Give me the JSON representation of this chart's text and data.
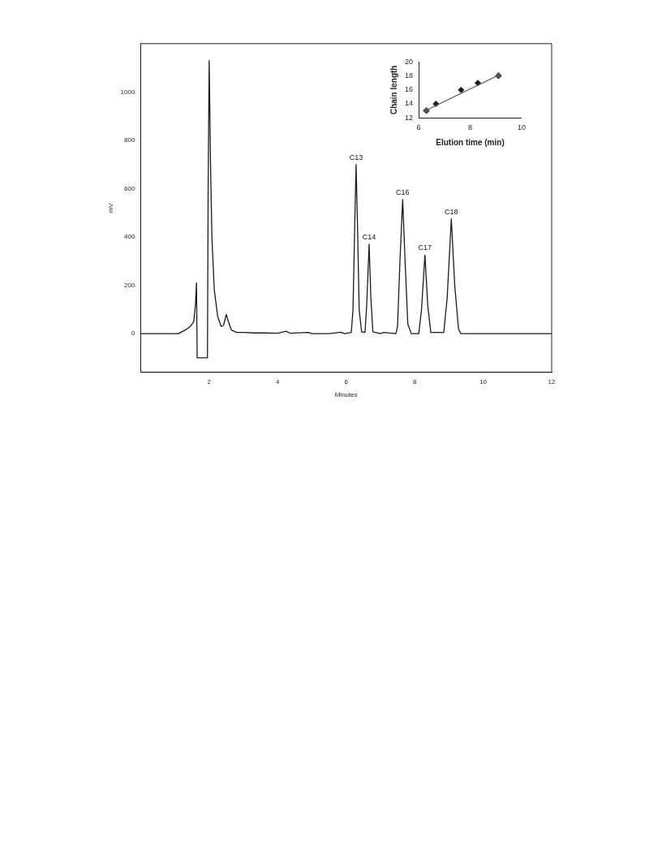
{
  "chart_data": [
    {
      "type": "line",
      "xlabel": "Minutes",
      "ylabel": "mV",
      "xlim": [
        0,
        12
      ],
      "ylim": [
        -160,
        1200
      ],
      "xticks": [
        2,
        4,
        6,
        8,
        10,
        12
      ],
      "yticks": [
        0,
        200,
        400,
        600,
        800,
        1000
      ],
      "grid": false,
      "legend": false,
      "marker": "none",
      "series": [
        {
          "color": "#1a1a1a",
          "x": [
            0,
            1.1,
            1.3,
            1.45,
            1.55,
            1.6,
            1.63,
            1.65,
            1.95,
            1.97,
            2.0,
            2.04,
            2.08,
            2.15,
            2.25,
            2.35,
            2.42,
            2.5,
            2.56,
            2.65,
            2.8,
            3.0,
            3.3,
            3.6,
            4.0,
            4.25,
            4.35,
            4.75,
            4.9,
            5.0,
            5.5,
            5.85,
            5.95,
            6.15,
            6.2,
            6.25,
            6.29,
            6.33,
            6.38,
            6.45,
            6.55,
            6.6,
            6.67,
            6.72,
            6.78,
            7.0,
            7.1,
            7.45,
            7.5,
            7.57,
            7.65,
            7.72,
            7.8,
            7.9,
            8.12,
            8.2,
            8.3,
            8.38,
            8.47,
            8.85,
            8.95,
            9.07,
            9.17,
            9.28,
            9.35,
            12
          ],
          "values": [
            0,
            0,
            15,
            30,
            50,
            120,
            210,
            -100,
            -100,
            600,
            1130,
            700,
            400,
            180,
            70,
            30,
            35,
            80,
            50,
            15,
            5,
            5,
            3,
            3,
            2,
            10,
            2,
            4,
            5,
            0,
            0,
            6,
            0,
            5,
            100,
            450,
            700,
            450,
            100,
            8,
            5,
            120,
            370,
            150,
            8,
            0,
            5,
            0,
            30,
            300,
            555,
            300,
            40,
            0,
            0,
            100,
            325,
            120,
            5,
            5,
            150,
            475,
            200,
            20,
            0,
            0
          ]
        }
      ],
      "annotations": [
        {
          "text": "C13",
          "x": 6.29,
          "y": 700
        },
        {
          "text": "C14",
          "x": 6.67,
          "y": 370
        },
        {
          "text": "C16",
          "x": 7.65,
          "y": 555
        },
        {
          "text": "C17",
          "x": 8.3,
          "y": 325
        },
        {
          "text": "C18",
          "x": 9.07,
          "y": 475
        }
      ]
    },
    {
      "type": "scatter",
      "xlabel": "Elution time (min)",
      "ylabel": "Chain length",
      "xlim": [
        6,
        10
      ],
      "ylim": [
        12,
        20
      ],
      "xticks": [
        6,
        8,
        10
      ],
      "yticks": [
        12,
        14,
        16,
        18,
        20
      ],
      "grid": false,
      "legend": false,
      "marker": "diamond",
      "series": [
        {
          "color": "#1a1a1a",
          "x": [
            6.3,
            6.67,
            7.65,
            8.3,
            9.1
          ],
          "values": [
            13,
            14,
            16,
            17,
            18
          ]
        },
        {
          "type": "line",
          "color": "#555555",
          "x": [
            6.3,
            9.1
          ],
          "values": [
            13.1,
            18.1
          ]
        }
      ]
    }
  ]
}
